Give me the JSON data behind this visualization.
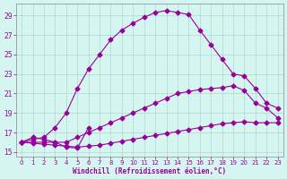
{
  "xlabel": "Windchill (Refroidissement éolien,°C)",
  "bg_color": "#d4f5f0",
  "line_color": "#990099",
  "grid_color": "#b0d8d0",
  "xlim": [
    -0.5,
    23.5
  ],
  "ylim": [
    14.5,
    30.2
  ],
  "yticks": [
    15,
    17,
    19,
    21,
    23,
    25,
    27,
    29
  ],
  "xticks": [
    0,
    1,
    2,
    3,
    4,
    5,
    6,
    7,
    8,
    9,
    10,
    11,
    12,
    13,
    14,
    15,
    16,
    17,
    18,
    19,
    20,
    21,
    22,
    23
  ],
  "curve_arch_x": [
    0,
    1,
    2,
    3,
    4,
    5,
    6,
    7,
    8,
    9,
    10,
    11,
    12,
    13,
    14,
    15,
    16,
    17,
    18,
    19,
    20,
    21,
    22,
    23
  ],
  "curve_arch_y": [
    16.0,
    16.3,
    16.5,
    17.5,
    19.0,
    21.5,
    23.5,
    25.0,
    26.5,
    27.5,
    28.2,
    28.8,
    29.3,
    29.5,
    29.3,
    29.1,
    27.5,
    26.0,
    24.5,
    23.0,
    22.8,
    21.5,
    20.0,
    19.5
  ],
  "curve_mid_x": [
    0,
    1,
    2,
    3,
    4,
    5,
    6,
    7,
    8,
    9,
    10,
    11,
    12,
    13,
    14,
    15,
    16,
    17,
    18,
    19,
    20,
    21,
    22,
    23
  ],
  "curve_mid_y": [
    16.0,
    16.0,
    16.0,
    16.0,
    16.0,
    16.5,
    17.0,
    17.5,
    18.0,
    18.5,
    19.0,
    19.5,
    20.0,
    20.5,
    21.0,
    21.2,
    21.4,
    21.5,
    21.6,
    21.8,
    21.3,
    20.0,
    19.5,
    18.5
  ],
  "curve_low_x": [
    0,
    1,
    2,
    3,
    4,
    5,
    6,
    7,
    8,
    9,
    10,
    11,
    12,
    13,
    14,
    15,
    16,
    17,
    18,
    19,
    20,
    21,
    22,
    23
  ],
  "curve_low_y": [
    16.0,
    15.9,
    15.8,
    15.7,
    15.6,
    15.5,
    15.6,
    15.7,
    15.9,
    16.1,
    16.3,
    16.5,
    16.7,
    16.9,
    17.1,
    17.3,
    17.5,
    17.7,
    17.9,
    18.0,
    18.1,
    18.0,
    18.0,
    18.0
  ],
  "curve_zigzag_x": [
    0,
    1,
    2,
    3,
    4,
    5,
    6
  ],
  "curve_zigzag_y": [
    16.0,
    16.5,
    16.3,
    16.0,
    15.5,
    15.4,
    17.5
  ]
}
